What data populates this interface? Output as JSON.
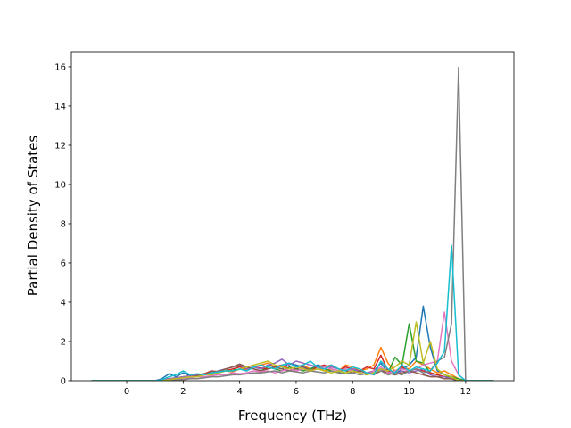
{
  "chart_data": {
    "type": "line",
    "xlabel": "Frequency (THz)",
    "ylabel": "Partial Density of States",
    "x": [
      -1.25,
      -1,
      -0.75,
      -0.5,
      -0.25,
      0,
      0.25,
      0.5,
      0.75,
      1,
      1.25,
      1.5,
      1.75,
      2,
      2.25,
      2.5,
      2.75,
      3,
      3.25,
      3.5,
      3.75,
      4,
      4.25,
      4.5,
      4.75,
      5,
      5.25,
      5.5,
      5.75,
      6,
      6.25,
      6.5,
      6.75,
      7,
      7.25,
      7.5,
      7.75,
      8,
      8.25,
      8.5,
      8.75,
      9,
      9.25,
      9.5,
      9.75,
      10,
      10.25,
      10.5,
      10.75,
      11,
      11.25,
      11.5,
      11.75,
      12,
      12.25,
      12.5,
      12.75,
      13
    ],
    "series": [
      {
        "color": "#1f77b4",
        "values": [
          0,
          0,
          0,
          0,
          0,
          0,
          0,
          0,
          0,
          0,
          0.1,
          0.35,
          0.2,
          0.4,
          0.25,
          0.3,
          0.35,
          0.3,
          0.4,
          0.5,
          0.45,
          0.6,
          0.5,
          0.7,
          0.6,
          0.8,
          0.7,
          0.6,
          0.9,
          0.8,
          0.7,
          0.6,
          0.8,
          0.7,
          0.6,
          0.5,
          0.7,
          0.6,
          0.4,
          0.3,
          0.5,
          0.9,
          0.4,
          0.3,
          0.6,
          0.8,
          1.2,
          3.8,
          1.7,
          0.5,
          0.3,
          0.2,
          0.1,
          0,
          0,
          0,
          0,
          0
        ]
      },
      {
        "color": "#ff7f0e",
        "values": [
          0,
          0,
          0,
          0,
          0,
          0,
          0,
          0,
          0,
          0,
          0.05,
          0.1,
          0.15,
          0.2,
          0.25,
          0.3,
          0.3,
          0.35,
          0.4,
          0.5,
          0.45,
          0.6,
          0.55,
          0.7,
          0.8,
          0.9,
          0.7,
          0.8,
          0.6,
          0.7,
          0.8,
          0.6,
          0.7,
          0.5,
          0.6,
          0.5,
          0.8,
          0.7,
          0.5,
          0.6,
          0.8,
          1.7,
          0.9,
          0.5,
          0.7,
          0.6,
          1.0,
          0.8,
          0.6,
          0.4,
          0.5,
          0.3,
          0.1,
          0,
          0,
          0,
          0,
          0
        ]
      },
      {
        "color": "#2ca02c",
        "values": [
          0,
          0,
          0,
          0,
          0,
          0,
          0,
          0,
          0,
          0,
          0.05,
          0.1,
          0.1,
          0.2,
          0.2,
          0.3,
          0.35,
          0.4,
          0.5,
          0.6,
          0.5,
          0.8,
          0.7,
          0.6,
          0.5,
          0.7,
          0.6,
          0.5,
          0.7,
          0.6,
          0.5,
          0.6,
          0.7,
          0.6,
          0.5,
          0.4,
          0.6,
          0.5,
          0.4,
          0.3,
          0.5,
          0.6,
          0.4,
          1.2,
          0.8,
          2.9,
          1.0,
          0.9,
          0.4,
          0.3,
          0.2,
          0.2,
          0.1,
          0,
          0,
          0,
          0,
          0
        ]
      },
      {
        "color": "#d62728",
        "values": [
          0,
          0,
          0,
          0,
          0,
          0,
          0,
          0,
          0,
          0,
          0,
          0.05,
          0.1,
          0.15,
          0.2,
          0.3,
          0.35,
          0.5,
          0.45,
          0.5,
          0.6,
          0.7,
          0.6,
          0.7,
          0.65,
          0.6,
          0.7,
          0.8,
          0.6,
          0.7,
          0.6,
          0.5,
          0.7,
          0.8,
          0.6,
          0.5,
          0.7,
          0.6,
          0.5,
          0.7,
          0.6,
          1.3,
          0.5,
          0.4,
          0.7,
          0.5,
          0.6,
          0.5,
          0.4,
          0.3,
          0.2,
          0.1,
          0,
          0,
          0,
          0,
          0,
          0
        ]
      },
      {
        "color": "#9467bd",
        "values": [
          0,
          0,
          0,
          0,
          0,
          0,
          0,
          0,
          0,
          0,
          0.05,
          0.1,
          0.15,
          0.2,
          0.25,
          0.3,
          0.3,
          0.4,
          0.5,
          0.6,
          0.7,
          0.8,
          0.6,
          0.7,
          0.6,
          0.8,
          0.9,
          1.1,
          0.8,
          1.0,
          0.9,
          0.8,
          0.7,
          0.6,
          0.7,
          0.6,
          0.5,
          0.6,
          0.5,
          0.4,
          0.5,
          0.6,
          0.4,
          0.3,
          0.5,
          0.4,
          0.5,
          0.6,
          0.3,
          0.2,
          0.2,
          0.1,
          0,
          0,
          0,
          0,
          0,
          0
        ]
      },
      {
        "color": "#8c564b",
        "values": [
          0,
          0,
          0,
          0,
          0,
          0,
          0,
          0,
          0,
          0,
          0,
          0.05,
          0.1,
          0.1,
          0.2,
          0.25,
          0.3,
          0.5,
          0.45,
          0.6,
          0.7,
          0.85,
          0.7,
          0.6,
          0.5,
          0.6,
          0.7,
          0.6,
          0.5,
          0.6,
          0.7,
          0.5,
          0.6,
          0.7,
          0.8,
          0.6,
          0.5,
          0.4,
          0.5,
          0.4,
          0.3,
          0.5,
          0.4,
          0.3,
          0.4,
          0.5,
          0.4,
          0.3,
          0.2,
          0.2,
          0.1,
          0.1,
          0,
          0,
          0,
          0,
          0,
          0
        ]
      },
      {
        "color": "#e377c2",
        "values": [
          0,
          0,
          0,
          0,
          0,
          0,
          0,
          0,
          0,
          0,
          0,
          0.05,
          0.05,
          0.1,
          0.15,
          0.2,
          0.2,
          0.25,
          0.3,
          0.3,
          0.4,
          0.35,
          0.4,
          0.5,
          0.45,
          0.5,
          0.4,
          0.5,
          0.6,
          0.5,
          0.6,
          0.5,
          0.6,
          0.7,
          0.6,
          0.5,
          0.6,
          0.5,
          0.4,
          0.3,
          0.5,
          0.7,
          0.4,
          0.5,
          0.6,
          0.5,
          0.6,
          0.8,
          0.9,
          1.0,
          3.5,
          1.0,
          0.3,
          0,
          0,
          0,
          0,
          0
        ]
      },
      {
        "color": "#7f7f7f",
        "values": [
          0,
          0,
          0,
          0,
          0,
          0,
          0,
          0,
          0,
          0,
          0,
          0,
          0.05,
          0.05,
          0.1,
          0.1,
          0.15,
          0.2,
          0.2,
          0.25,
          0.3,
          0.3,
          0.35,
          0.4,
          0.4,
          0.45,
          0.5,
          0.4,
          0.5,
          0.45,
          0.4,
          0.5,
          0.45,
          0.4,
          0.5,
          0.4,
          0.35,
          0.4,
          0.3,
          0.35,
          0.4,
          0.5,
          0.3,
          0.4,
          0.3,
          0.5,
          0.6,
          0.4,
          0.5,
          1.0,
          1.2,
          2.9,
          15.97,
          0,
          0,
          0,
          0,
          0
        ]
      },
      {
        "color": "#bcbd22",
        "values": [
          0,
          0,
          0,
          0,
          0,
          0,
          0,
          0,
          0,
          0,
          0,
          0.05,
          0.1,
          0.15,
          0.2,
          0.2,
          0.3,
          0.3,
          0.4,
          0.5,
          0.5,
          0.6,
          0.7,
          0.8,
          0.9,
          1.0,
          0.8,
          0.7,
          0.6,
          0.7,
          0.6,
          0.5,
          0.6,
          0.5,
          0.4,
          0.5,
          0.4,
          0.5,
          0.4,
          0.3,
          0.4,
          0.6,
          0.5,
          0.7,
          1.0,
          0.8,
          3.0,
          0.9,
          2.0,
          0.6,
          0.3,
          0.2,
          0,
          0,
          0,
          0,
          0,
          0
        ]
      },
      {
        "color": "#17becf",
        "values": [
          0,
          0,
          0,
          0,
          0,
          0,
          0,
          0,
          0,
          0,
          0.05,
          0.2,
          0.3,
          0.5,
          0.3,
          0.35,
          0.3,
          0.4,
          0.45,
          0.5,
          0.5,
          0.6,
          0.5,
          0.7,
          0.8,
          0.7,
          0.6,
          0.8,
          0.9,
          0.7,
          0.8,
          1.0,
          0.7,
          0.6,
          0.8,
          0.6,
          0.5,
          0.7,
          0.6,
          0.4,
          0.3,
          1.0,
          0.6,
          0.4,
          0.8,
          0.5,
          0.7,
          0.6,
          0.5,
          0.9,
          1.5,
          6.9,
          0.3,
          0,
          0,
          0,
          0,
          0
        ]
      }
    ],
    "xlim": [
      -1.96,
      13.71
    ],
    "xticks": [
      0,
      2,
      4,
      6,
      8,
      10,
      12
    ],
    "ylim": [
      0,
      16.77
    ],
    "yticks": [
      0,
      2,
      4,
      6,
      8,
      10,
      12,
      14,
      16
    ],
    "grid": false
  }
}
